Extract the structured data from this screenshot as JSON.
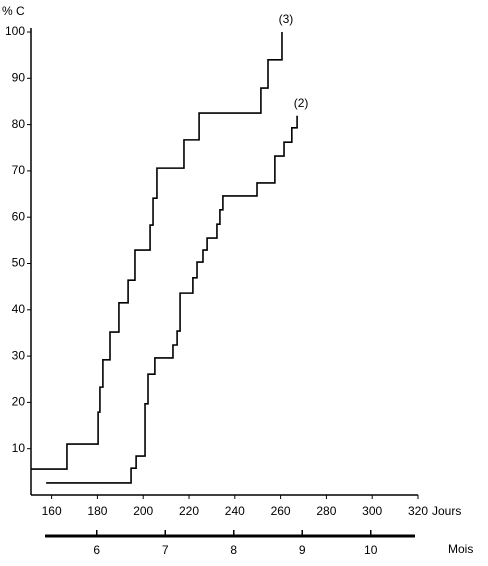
{
  "chart_data": {
    "type": "step",
    "y_label": "% C",
    "x_label": "Jours",
    "x2_label": "Mois",
    "xlim": [
      151,
      320
    ],
    "xticks": [
      160,
      180,
      200,
      220,
      240,
      260,
      280,
      300,
      320
    ],
    "ylim": [
      0,
      100
    ],
    "yticks": [
      10,
      20,
      30,
      40,
      50,
      60,
      70,
      80,
      90,
      100
    ],
    "x2lim": [
      5.04,
      10.69
    ],
    "x2ticks": [
      6,
      7,
      8,
      9,
      10
    ],
    "series": [
      {
        "name": "(3)",
        "color": "#000000",
        "x": [
          151,
          166.7,
          180.3,
          181.1,
          182.4,
          185.5,
          189.4,
          193.4,
          196.4,
          203,
          204.3,
          206,
          217.8,
          224.4,
          251.4,
          254.5,
          260.6
        ],
        "values": [
          5.6,
          11,
          17.9,
          23.3,
          29.2,
          35.2,
          41.5,
          46.4,
          52.9,
          58.3,
          64.1,
          70.6,
          76.7,
          82.5,
          87.9,
          94,
          100
        ]
      },
      {
        "name": "(2)",
        "color": "#000000",
        "x": [
          157.6,
          194.7,
          196.9,
          200.8,
          202.1,
          205.1,
          213,
          214.8,
          216.1,
          221.7,
          223.5,
          226.1,
          227.9,
          232.2,
          233.5,
          234.8,
          249.7,
          257.5,
          261.5,
          264.9,
          267.2
        ],
        "values": [
          2.6,
          5.8,
          8.4,
          19.7,
          26.1,
          29.6,
          32.4,
          35.4,
          43.6,
          46.9,
          50.3,
          52.9,
          55.5,
          58.5,
          61.6,
          64.6,
          67.4,
          73.2,
          76.2,
          79.3,
          81.9
        ]
      }
    ]
  }
}
